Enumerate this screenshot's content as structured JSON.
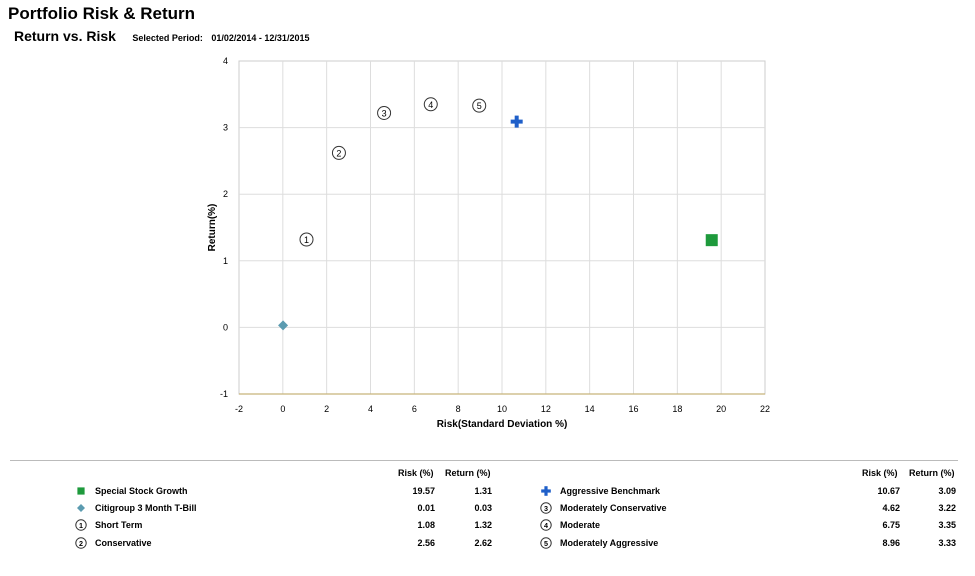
{
  "header": {
    "title": "Portfolio Risk & Return",
    "subtitle": "Return vs. Risk",
    "period_label": "Selected Period:",
    "period_value": "01/02/2014 -  12/31/2015"
  },
  "chart_data": {
    "type": "scatter",
    "title": "",
    "xlabel": "Risk(Standard Deviation %)",
    "ylabel": "Return(%)",
    "xlim": [
      -2,
      22
    ],
    "ylim": [
      -1,
      4
    ],
    "xticks": [
      -2,
      0,
      2,
      4,
      6,
      8,
      10,
      12,
      14,
      16,
      18,
      20,
      22
    ],
    "yticks": [
      -1,
      0,
      1,
      2,
      3,
      4
    ],
    "grid": true,
    "legend_position": "bottom",
    "series": [
      {
        "name": "Special Stock Growth",
        "marker": "square",
        "color": "#1e9a3c",
        "x": 19.57,
        "y": 1.31
      },
      {
        "name": "Citigroup 3 Month T-Bill",
        "marker": "diamond",
        "color": "#5b9bb0",
        "x": 0.01,
        "y": 0.03
      },
      {
        "name": "Short Term",
        "marker": "circle-1",
        "label": "1",
        "color": "#333333",
        "x": 1.08,
        "y": 1.32
      },
      {
        "name": "Conservative",
        "marker": "circle-2",
        "label": "2",
        "color": "#333333",
        "x": 2.56,
        "y": 2.62
      },
      {
        "name": "Aggressive Benchmark",
        "marker": "plus",
        "color": "#1f5fc9",
        "x": 10.67,
        "y": 3.09
      },
      {
        "name": "Moderately Conservative",
        "marker": "circle-3",
        "label": "3",
        "color": "#333333",
        "x": 4.62,
        "y": 3.22
      },
      {
        "name": "Moderate",
        "marker": "circle-4",
        "label": "4",
        "color": "#333333",
        "x": 6.75,
        "y": 3.35
      },
      {
        "name": "Moderately Aggressive",
        "marker": "circle-5",
        "label": "5",
        "color": "#333333",
        "x": 8.96,
        "y": 3.33
      }
    ]
  },
  "legend": {
    "risk_header": "Risk (%)",
    "return_header": "Return (%)",
    "left": [
      {
        "name": "Special Stock Growth",
        "risk": "19.57",
        "return": "1.31"
      },
      {
        "name": "Citigroup 3 Month T-Bill",
        "risk": "0.01",
        "return": "0.03"
      },
      {
        "name": "Short Term",
        "risk": "1.08",
        "return": "1.32"
      },
      {
        "name": "Conservative",
        "risk": "2.56",
        "return": "2.62"
      }
    ],
    "right": [
      {
        "name": "Aggressive Benchmark",
        "risk": "10.67",
        "return": "3.09"
      },
      {
        "name": "Moderately Conservative",
        "risk": "4.62",
        "return": "3.22"
      },
      {
        "name": "Moderate",
        "risk": "6.75",
        "return": "3.35"
      },
      {
        "name": "Moderately Aggressive",
        "risk": "8.96",
        "return": "3.33"
      }
    ]
  }
}
